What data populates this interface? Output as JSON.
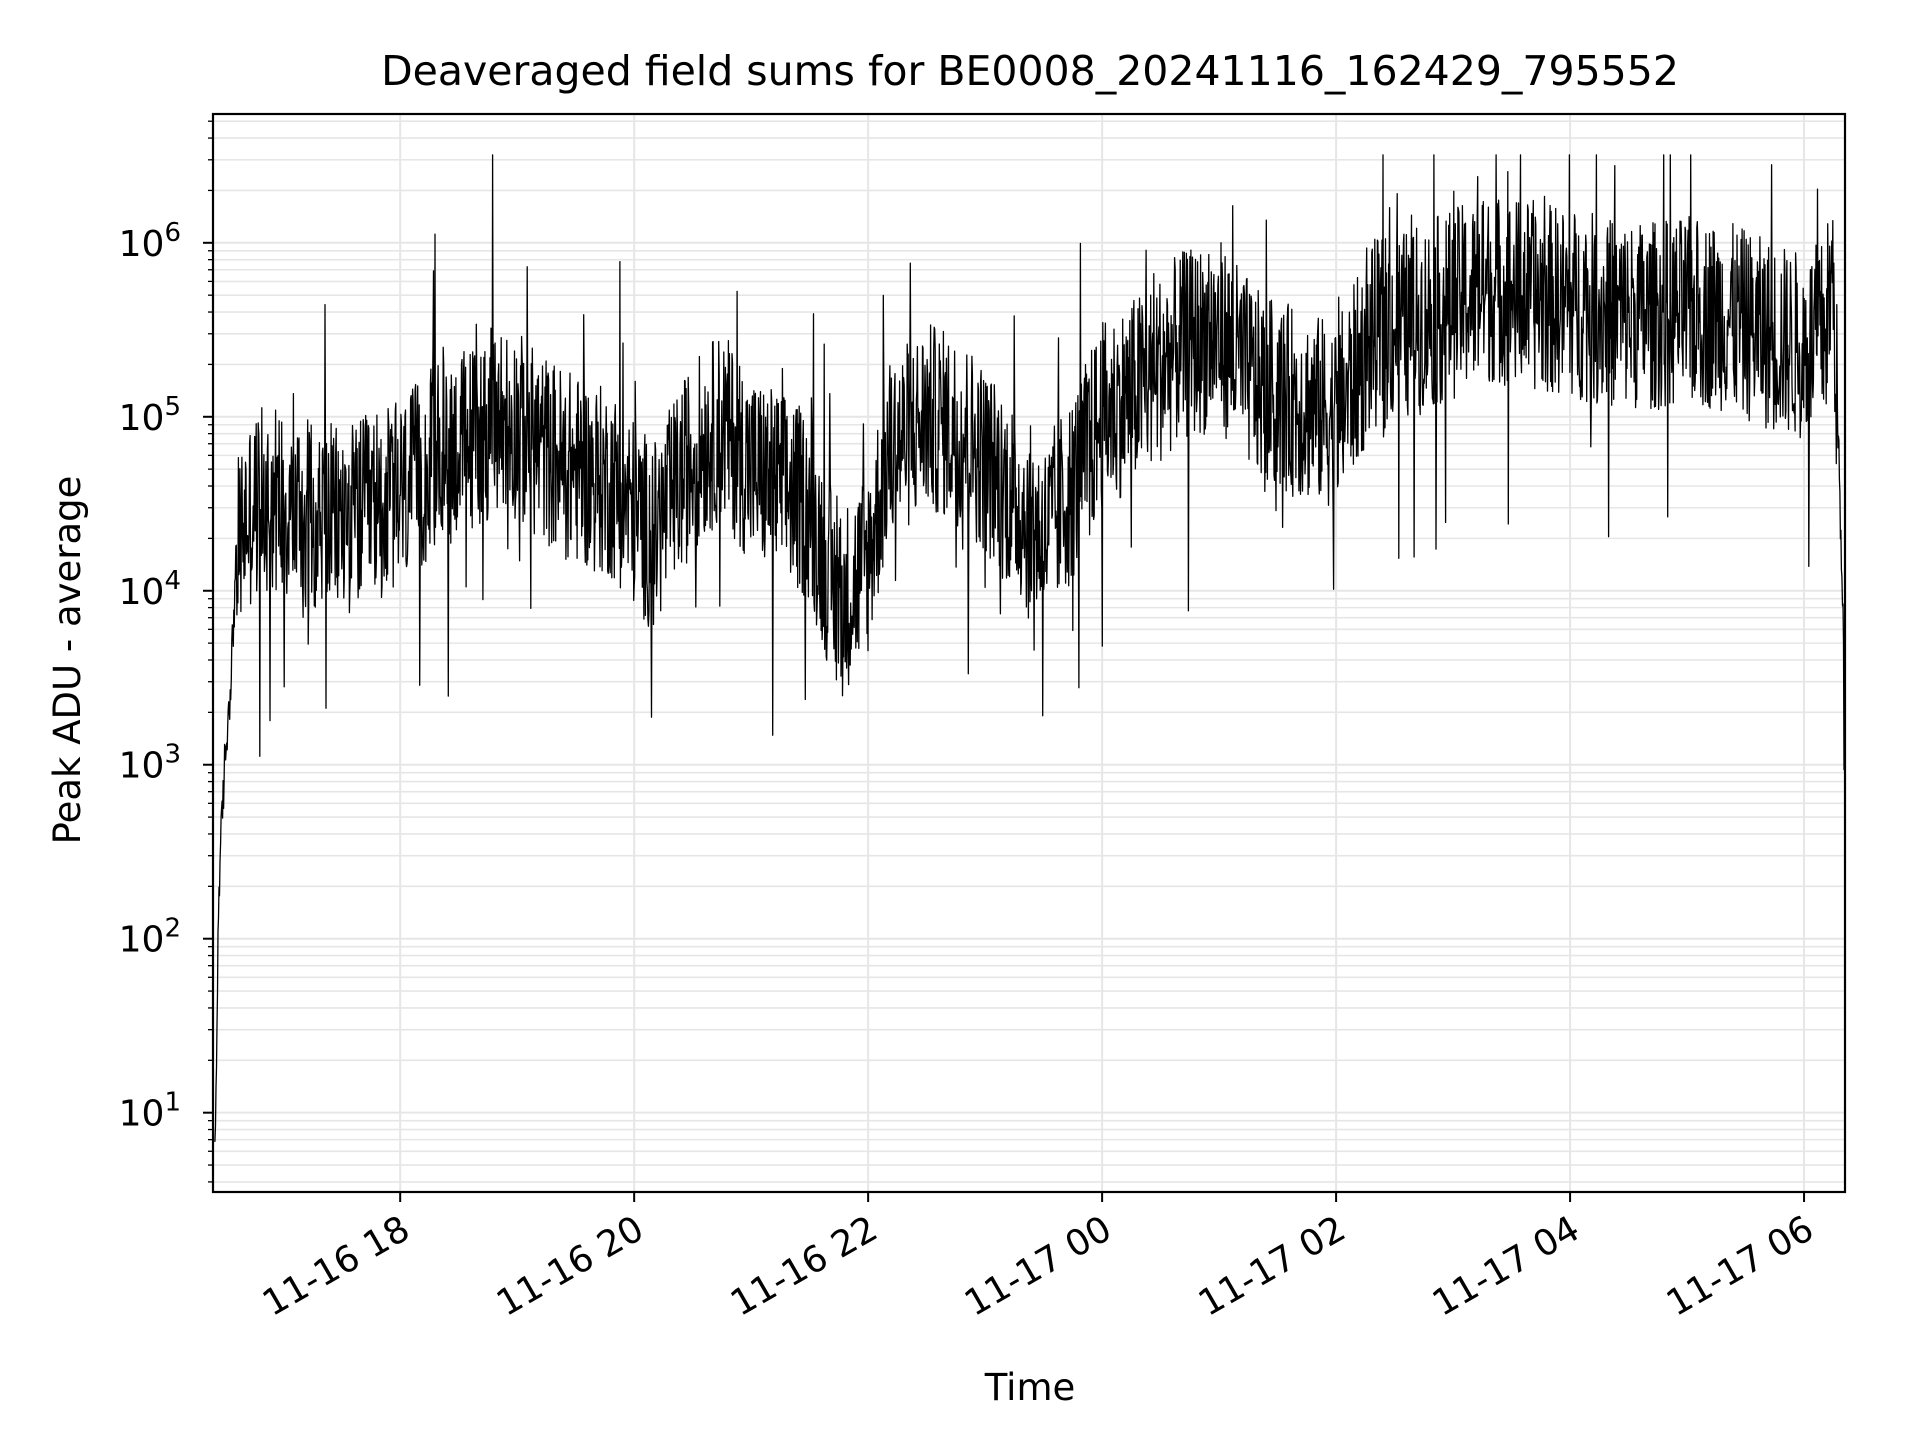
{
  "chart_data": {
    "type": "line",
    "title": "Deaveraged field sums for BE0008_20241116_162429_795552",
    "xlabel": "Time",
    "ylabel": "Peak ADU - average",
    "yscale": "log",
    "ylim": [
      3.5,
      5500000
    ],
    "xlim": [
      "11-16 16:24",
      "11-17 06:21"
    ],
    "x_ticks": [
      "11-16 18",
      "11-16 20",
      "11-16 22",
      "11-17 00",
      "11-17 02",
      "11-17 04",
      "11-17 06"
    ],
    "y_ticks": [
      {
        "base": "10",
        "exp": "1",
        "value": 10
      },
      {
        "base": "10",
        "exp": "2",
        "value": 100
      },
      {
        "base": "10",
        "exp": "3",
        "value": 1000
      },
      {
        "base": "10",
        "exp": "4",
        "value": 10000
      },
      {
        "base": "10",
        "exp": "5",
        "value": 100000
      },
      {
        "base": "10",
        "exp": "6",
        "value": 1000000
      }
    ],
    "grid": true,
    "legend": "none",
    "line_color": "#000000",
    "grid_color": "#e6e6e6",
    "series": [
      {
        "x": [
          "11-16 16:25",
          "11-16 16:27",
          "11-16 16:30",
          "11-16 16:33",
          "11-16 16:36",
          "11-16 16:40",
          "11-16 16:45",
          "11-16 16:55",
          "11-16 17:05",
          "11-16 17:15",
          "11-16 17:30",
          "11-16 17:45",
          "11-16 18:00",
          "11-16 18:20",
          "11-16 18:40",
          "11-16 18:55",
          "11-16 19:10",
          "11-16 19:30",
          "11-16 19:50",
          "11-16 20:10",
          "11-16 20:30",
          "11-16 20:45",
          "11-16 21:00",
          "11-16 21:15",
          "11-16 21:30",
          "11-16 21:45",
          "11-16 22:00",
          "11-16 22:10",
          "11-16 22:30",
          "11-16 22:50",
          "11-16 23:10",
          "11-16 23:30",
          "11-16 23:45",
          "11-17 00:00",
          "11-17 00:20",
          "11-17 00:40",
          "11-17 01:00",
          "11-17 01:20",
          "11-17 01:40",
          "11-17 02:00",
          "11-17 02:20",
          "11-17 02:40",
          "11-17 03:00",
          "11-17 03:20",
          "11-17 03:40",
          "11-17 04:00",
          "11-17 04:20",
          "11-17 04:40",
          "11-17 05:00",
          "11-17 05:20",
          "11-17 05:40",
          "11-17 06:00",
          "11-17 06:10",
          "11-17 06:15",
          "11-17 06:18",
          "11-17 06:21"
        ],
        "y": [
          5,
          200,
          1000,
          3000,
          15000,
          25000,
          30000,
          35000,
          30000,
          28000,
          25000,
          30000,
          35000,
          60000,
          80000,
          100000,
          70000,
          50000,
          40000,
          20000,
          60000,
          90000,
          50000,
          40000,
          30000,
          8000,
          15000,
          60000,
          100000,
          80000,
          40000,
          20000,
          40000,
          100000,
          150000,
          250000,
          300000,
          150000,
          120000,
          100000,
          300000,
          350000,
          450000,
          550000,
          500000,
          450000,
          400000,
          380000,
          400000,
          380000,
          300000,
          250000,
          300000,
          600000,
          50000,
          2000
        ]
      }
    ]
  }
}
